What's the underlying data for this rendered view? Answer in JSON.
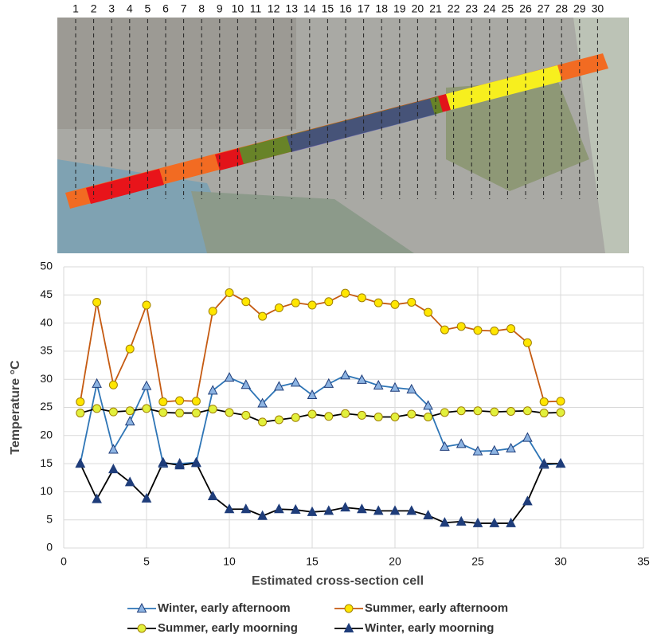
{
  "map": {
    "cell_labels": [
      1,
      2,
      3,
      4,
      5,
      6,
      7,
      8,
      9,
      10,
      11,
      12,
      13,
      14,
      15,
      16,
      17,
      18,
      19,
      20,
      21,
      22,
      23,
      24,
      25,
      26,
      27,
      28,
      29,
      30
    ]
  },
  "chart_data": {
    "type": "line",
    "xlabel": "Estimated cross-section cell",
    "ylabel": "Temperature °C",
    "x": [
      1,
      2,
      3,
      4,
      5,
      6,
      7,
      8,
      9,
      10,
      11,
      12,
      13,
      14,
      15,
      16,
      17,
      18,
      19,
      20,
      21,
      22,
      23,
      24,
      25,
      26,
      27,
      28,
      29,
      30
    ],
    "xlim": [
      0,
      35
    ],
    "xticks": [
      0,
      5,
      10,
      15,
      20,
      25,
      30,
      35
    ],
    "ylim": [
      0,
      50
    ],
    "yticks": [
      0,
      5,
      10,
      15,
      20,
      25,
      30,
      35,
      40,
      45,
      50
    ],
    "grid": true,
    "series": [
      {
        "name": "Winter, early afternoom",
        "color": "#2e75b6",
        "marker": "triangle",
        "marker_color": "#8db4e2",
        "values": [
          15,
          29.2,
          17.5,
          22.5,
          28.8,
          15,
          15,
          15.2,
          28,
          30.3,
          29,
          25.7,
          28.7,
          29.4,
          27.2,
          29.2,
          30.7,
          29.9,
          28.9,
          28.5,
          28.2,
          25.3,
          18,
          18.5,
          17.2,
          17.3,
          17.7,
          19.6,
          14.8,
          15
        ]
      },
      {
        "name": "Summer, early afternoom",
        "color": "#c55a11",
        "marker": "circle",
        "marker_color": "#ffe600",
        "values": [
          26,
          43.7,
          29,
          35.4,
          43.2,
          26,
          26.2,
          26.1,
          42.1,
          45.4,
          43.8,
          41.2,
          42.7,
          43.6,
          43.2,
          43.8,
          45.3,
          44.5,
          43.6,
          43.3,
          43.7,
          41.9,
          38.8,
          39.4,
          38.7,
          38.6,
          39,
          36.5,
          26,
          26.1
        ]
      },
      {
        "name": "Summer, early moorning",
        "color": "#000000",
        "marker": "circle",
        "marker_color": "#e2f03c",
        "values": [
          24,
          24.8,
          24.2,
          24.4,
          24.8,
          24.1,
          24,
          24,
          24.7,
          24.1,
          23.6,
          22.4,
          22.8,
          23.2,
          23.8,
          23.4,
          23.9,
          23.6,
          23.3,
          23.3,
          23.8,
          23.3,
          24.1,
          24.4,
          24.4,
          24.2,
          24.3,
          24.4,
          24,
          24.1
        ]
      },
      {
        "name": "Winter, early moorning",
        "color": "#000000",
        "marker": "triangle",
        "marker_color": "#1f3d7a",
        "values": [
          15,
          8.7,
          14,
          11.7,
          8.8,
          15.2,
          14.7,
          15.1,
          9.2,
          6.9,
          6.9,
          5.7,
          6.9,
          6.8,
          6.4,
          6.6,
          7.2,
          6.9,
          6.6,
          6.6,
          6.6,
          5.8,
          4.5,
          4.7,
          4.4,
          4.4,
          4.4,
          8.3,
          15,
          15
        ]
      }
    ]
  }
}
